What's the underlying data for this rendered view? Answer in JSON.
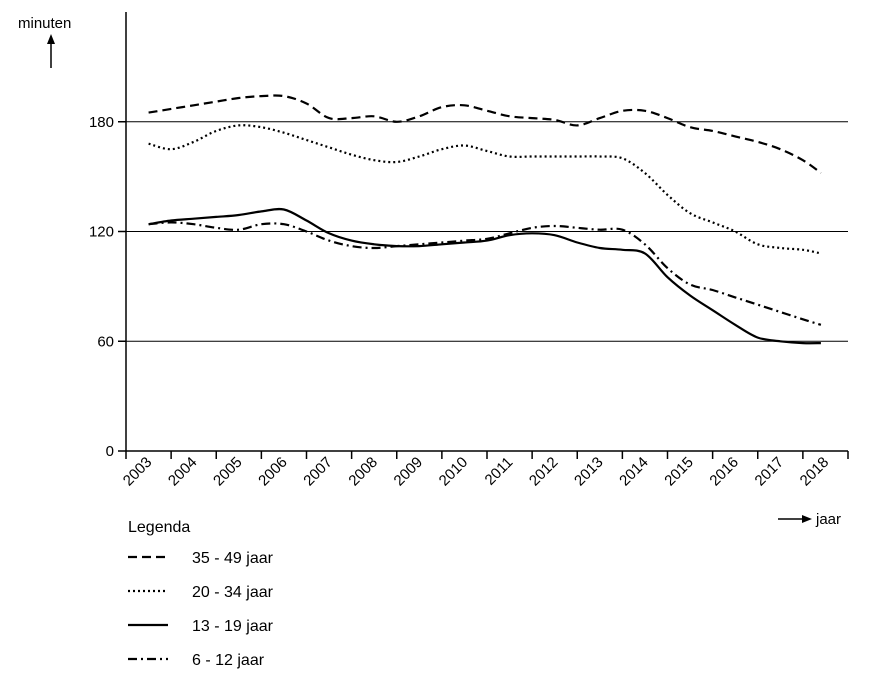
{
  "chart_data": {
    "type": "line",
    "ylabel": "minuten",
    "xlabel": "jaar",
    "ylim": [
      0,
      240
    ],
    "yticks": [
      0,
      60,
      120,
      180
    ],
    "gridlines_y": [
      60,
      120,
      180
    ],
    "x_tick_labels": [
      "2003",
      "2004",
      "2005",
      "2006",
      "2007",
      "2008",
      "2009",
      "2010",
      "2011",
      "2012",
      "2013",
      "2014",
      "2015",
      "2016",
      "2017",
      "2018"
    ],
    "legend": {
      "title": "Legenda",
      "placement": "bottom-left"
    },
    "series": [
      {
        "name": "35 - 49 jaar",
        "style": "dashed",
        "x": [
          2003.5,
          2004.0,
          2004.5,
          2005.0,
          2005.5,
          2006.0,
          2006.5,
          2007.0,
          2007.5,
          2008.0,
          2008.5,
          2009.0,
          2009.5,
          2010.0,
          2010.5,
          2011.0,
          2011.5,
          2012.0,
          2012.5,
          2013.0,
          2013.5,
          2014.0,
          2014.5,
          2015.0,
          2015.5,
          2016.0,
          2016.5,
          2017.0,
          2017.5,
          2018.0,
          2018.4
        ],
        "values": [
          185,
          187,
          189,
          191,
          193,
          194,
          194,
          190,
          182,
          182,
          183,
          180,
          183,
          188,
          189,
          186,
          183,
          182,
          181,
          178,
          182,
          186,
          186,
          182,
          177,
          175,
          172,
          169,
          165,
          159,
          152
        ]
      },
      {
        "name": "20 - 34 jaar",
        "style": "dotted",
        "x": [
          2003.5,
          2004.0,
          2004.5,
          2005.0,
          2005.5,
          2006.0,
          2006.5,
          2007.0,
          2007.5,
          2008.0,
          2008.5,
          2009.0,
          2009.5,
          2010.0,
          2010.5,
          2011.0,
          2011.5,
          2012.0,
          2012.5,
          2013.0,
          2013.5,
          2014.0,
          2014.5,
          2015.0,
          2015.5,
          2016.0,
          2016.5,
          2017.0,
          2017.5,
          2018.0,
          2018.4
        ],
        "values": [
          168,
          165,
          169,
          175,
          178,
          177,
          174,
          170,
          166,
          162,
          159,
          158,
          161,
          165,
          167,
          164,
          161,
          161,
          161,
          161,
          161,
          160,
          152,
          140,
          130,
          125,
          120,
          113,
          111,
          110,
          108
        ]
      },
      {
        "name": "13 - 19 jaar",
        "style": "solid",
        "x": [
          2003.5,
          2004.0,
          2004.5,
          2005.0,
          2005.5,
          2006.0,
          2006.5,
          2007.0,
          2007.5,
          2008.0,
          2008.5,
          2009.0,
          2009.5,
          2010.0,
          2010.5,
          2011.0,
          2011.5,
          2012.0,
          2012.5,
          2013.0,
          2013.5,
          2014.0,
          2014.5,
          2015.0,
          2015.5,
          2016.0,
          2016.5,
          2017.0,
          2017.5,
          2018.0,
          2018.4
        ],
        "values": [
          124,
          126,
          127,
          128,
          129,
          131,
          132,
          126,
          119,
          115,
          113,
          112,
          112,
          113,
          114,
          115,
          118,
          119,
          118,
          114,
          111,
          110,
          108,
          95,
          85,
          77,
          69,
          62,
          60,
          59,
          59
        ]
      },
      {
        "name": "6 - 12 jaar",
        "style": "dash-dot",
        "x": [
          2003.5,
          2004.0,
          2004.5,
          2005.0,
          2005.5,
          2006.0,
          2006.5,
          2007.0,
          2007.5,
          2008.0,
          2008.5,
          2009.0,
          2009.5,
          2010.0,
          2010.5,
          2011.0,
          2011.5,
          2012.0,
          2012.5,
          2013.0,
          2013.5,
          2014.0,
          2014.5,
          2015.0,
          2015.5,
          2016.0,
          2016.5,
          2017.0,
          2017.5,
          2018.0,
          2018.4
        ],
        "values": [
          124,
          125,
          124,
          122,
          121,
          124,
          124,
          120,
          115,
          112,
          111,
          112,
          113,
          114,
          115,
          116,
          119,
          122,
          123,
          122,
          121,
          121,
          113,
          100,
          91,
          88,
          84,
          80,
          76,
          72,
          69
        ]
      }
    ]
  }
}
